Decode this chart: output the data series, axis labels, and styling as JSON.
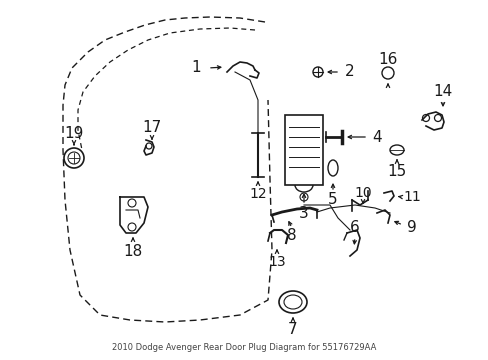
{
  "title": "2010 Dodge Avenger Rear Door Plug Diagram for 55176729AA",
  "bg_color": "#ffffff",
  "line_color": "#1a1a1a",
  "figsize": [
    4.89,
    3.6
  ],
  "dpi": 100
}
